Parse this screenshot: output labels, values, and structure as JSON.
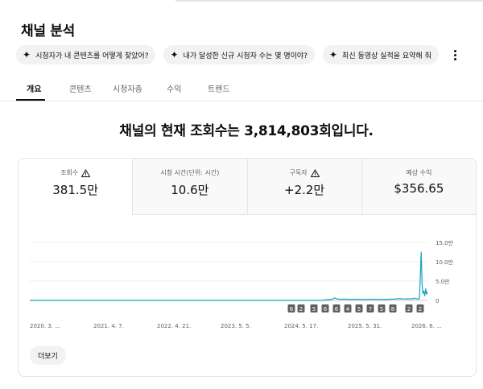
{
  "page": {
    "title": "채널 분석"
  },
  "chips": [
    {
      "label": "시청자가 내 콘텐츠를 어떻게 찾았어?"
    },
    {
      "label": "내가 달성한 신규 시청자 수는 몇 명이야?"
    },
    {
      "label": "최신 동영상 실적을 요약해 줘"
    }
  ],
  "tabs": [
    {
      "label": "개요",
      "active": true
    },
    {
      "label": "콘텐츠"
    },
    {
      "label": "시청자층"
    },
    {
      "label": "수익"
    },
    {
      "label": "트렌드"
    }
  ],
  "headline": "채널의 현재 조회수는 3,814,803회입니다.",
  "metrics": [
    {
      "label": "조회수",
      "value": "381.5만",
      "warning": true
    },
    {
      "label": "시청 시간(단위: 시간)",
      "value": "10.6만",
      "warning": false
    },
    {
      "label": "구독자",
      "value": "+2.2만",
      "warning": true
    },
    {
      "label": "예상 수익",
      "value": "$356.65",
      "warning": false
    }
  ],
  "chart_data": {
    "type": "line",
    "series_color": "#12a4bf",
    "x_tick_labels": [
      "2020. 3. ...",
      "2021. 4. 7.",
      "2022. 4. 21.",
      "2023. 5. 5.",
      "2024. 5. 17.",
      "2025. 5. 31.",
      "2026. 6. ..."
    ],
    "y_tick_labels": [
      "15.0만",
      "10.0만",
      "5.0만",
      "0"
    ],
    "ylim": [
      0,
      150000
    ],
    "grid": true,
    "values": [
      0,
      0,
      0,
      0,
      0,
      0,
      0,
      0,
      0,
      0,
      0,
      0,
      0,
      0,
      0,
      0,
      0,
      0,
      0,
      0,
      0,
      0,
      0,
      0,
      0,
      0,
      0,
      0,
      0,
      0,
      0,
      0,
      0,
      0,
      0,
      0,
      0,
      0,
      0,
      0,
      0,
      0,
      0,
      0,
      0,
      0,
      0,
      0,
      0,
      0,
      0,
      0,
      0,
      0,
      0,
      0,
      0,
      0,
      0,
      0,
      0,
      0,
      0,
      0,
      0,
      0,
      0,
      0,
      0,
      0,
      0,
      0,
      0,
      0,
      0,
      0,
      0,
      0,
      0,
      0,
      0,
      0,
      0,
      0,
      0,
      0,
      0,
      0,
      0,
      0,
      0,
      0,
      0,
      0,
      0,
      0,
      0,
      0,
      0,
      0,
      0,
      0,
      0,
      0,
      0,
      0,
      0,
      0,
      0,
      0,
      0,
      0,
      0,
      0,
      0,
      0,
      0,
      0,
      0,
      0,
      0,
      0,
      0,
      0,
      0,
      0,
      0,
      0,
      0,
      0,
      0,
      0,
      0,
      0,
      0,
      0,
      0,
      0,
      0,
      0,
      0,
      0,
      0,
      0,
      0,
      0,
      0,
      0,
      0,
      0,
      0,
      0,
      0,
      0,
      0,
      0,
      0,
      0,
      0,
      0,
      0,
      0,
      0,
      0,
      0,
      0,
      0,
      0,
      0,
      0,
      0,
      0,
      0,
      0,
      0,
      0,
      0,
      0,
      0,
      0,
      0,
      0,
      0,
      0,
      0,
      0,
      0,
      0,
      0,
      0,
      0,
      0,
      0,
      0,
      0,
      0,
      0,
      0,
      0,
      0,
      0,
      0,
      0,
      0,
      0,
      0,
      0,
      0,
      0,
      0,
      0,
      0,
      0,
      0,
      0,
      0,
      0,
      0,
      0,
      0,
      0,
      0,
      0,
      0,
      0,
      0,
      0,
      0,
      0,
      0,
      0,
      0,
      0,
      0,
      0,
      0,
      0,
      0,
      0,
      0,
      0,
      0,
      0,
      0,
      0,
      0,
      0,
      0,
      0,
      0,
      0,
      0,
      0,
      0,
      0,
      0,
      0,
      0,
      0,
      0,
      0,
      0,
      0,
      0,
      0,
      0,
      0,
      0,
      0,
      0,
      0,
      0,
      0,
      0,
      0,
      0,
      0,
      0,
      0,
      0,
      0,
      0,
      0,
      0,
      0,
      0,
      0,
      0,
      0,
      0,
      0,
      0,
      0,
      0,
      0,
      0,
      0,
      0,
      0,
      0,
      0,
      0,
      0,
      0,
      0,
      0,
      0,
      0,
      0,
      0,
      0,
      0,
      0,
      0,
      0,
      0,
      0,
      0,
      0,
      0,
      0,
      0,
      0,
      0,
      0,
      0,
      0,
      0,
      0,
      0,
      1500,
      900,
      2100,
      1200,
      2600,
      1400,
      3000,
      1800,
      2400,
      3500,
      5200,
      6800,
      5400,
      4200,
      3600,
      3900,
      3000,
      3400,
      2800,
      3200,
      2600,
      3800,
      3100,
      2900,
      3500,
      2700,
      3300,
      2500,
      3000,
      2800,
      2600,
      3100,
      2400,
      2900,
      2200,
      2700,
      2500,
      3200,
      2300,
      2800,
      2600,
      2100,
      3000,
      2400,
      2700,
      2200,
      2900,
      2500,
      2300,
      2800,
      2600,
      3100,
      2400,
      2700,
      2900,
      2300,
      2600,
      3200,
      2500,
      2800,
      2400,
      2600,
      3000,
      2200,
      2700,
      2500,
      2900,
      2400,
      3100,
      2600,
      2800,
      3300,
      3000,
      3600,
      3200,
      2900,
      3400,
      3800,
      3100,
      3500,
      4200,
      3800,
      5600,
      4400,
      3900,
      4700,
      4100,
      3700,
      4300,
      3900,
      3600,
      4000,
      3800,
      4400,
      4100,
      3700,
      4200,
      3900,
      4600,
      4000,
      6200,
      5000,
      4300,
      3800,
      4100,
      3900,
      4400,
      60000,
      125000,
      40000,
      18000,
      24000,
      12000,
      30000,
      16000,
      22000
    ],
    "event_markers": [
      "6",
      "2",
      "5",
      "6",
      "6",
      "4",
      "5",
      "7",
      "5",
      "8",
      "2",
      "2"
    ]
  },
  "buttons": {
    "more": "더보기"
  }
}
